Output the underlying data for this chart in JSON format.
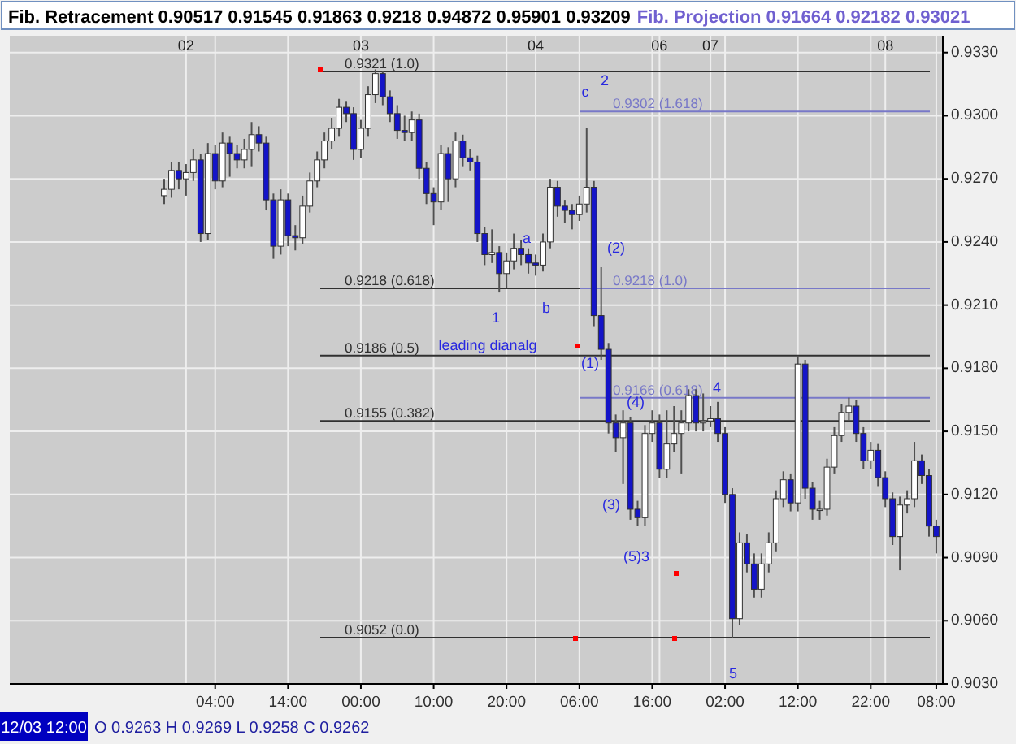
{
  "chart_data": {
    "type": "candlestick",
    "title": "Fib. Retracement 0.90517 0.91545 0.91863 0.9218 0.94872 0.95901 0.93209",
    "subtitle": "Fib. Projection 0.91664 0.92182 0.93021",
    "colors": [
      "#ffffff",
      "#ffffff",
      "#1414c8",
      "#ffffff",
      "#ffffff",
      "#1414c8",
      "#ffffff",
      "#1414c8",
      "#ffffff",
      "#1414c8",
      "#1414c8",
      "#ffffff",
      "#ffffff",
      "#1414c8",
      "#1414c8",
      "#1414c8",
      "#ffffff",
      "#1414c8",
      "#1414c8",
      "#ffffff",
      "#ffffff",
      "#ffffff",
      "#ffffff",
      "#ffffff",
      "#ffffff",
      "#1414c8",
      "#1414c8",
      "#ffffff",
      "#ffffff",
      "#ffffff",
      "#1414c8",
      "#1414c8",
      "#1414c8",
      "#1414c8",
      "#ffffff",
      "#1414c8",
      "#1414c8",
      "#1414c8",
      "#ffffff",
      "#1414c8",
      "#ffffff",
      "#1414c8",
      "#1414c8",
      "#1414c8",
      "#1414c8",
      "#ffffff",
      "#1414c8",
      "#ffffff",
      "#ffffff",
      "#1414c8",
      "#1414c8",
      "#1414c8",
      "#ffffff",
      "#ffffff",
      "#1414c8",
      "#1414c8",
      "#1414c8",
      "#ffffff",
      "#ffffff",
      "#1414c8",
      "#1414c8",
      "#1414c8",
      "#1414c8",
      "#ffffff",
      "#1414c8",
      "#1414c8",
      "#ffffff",
      "#ffffff",
      "#1414c8",
      "#ffffff",
      "#ffffff",
      "#ffffff",
      "#ffffff",
      "#1414c8",
      "#ffffff",
      "#ffffff",
      "#1414c8",
      "#1414c8",
      "#1414c8",
      "#ffffff",
      "#1414c8",
      "#1414c8",
      "#ffffff",
      "#ffffff",
      "#ffffff",
      "#ffffff",
      "#1414c8",
      "#ffffff",
      "#1414c8",
      "#1414c8",
      "#ffffff",
      "#ffffff",
      "#ffffff",
      "#ffffff",
      "#ffffff",
      "#1414c8",
      "#1414c8",
      "#ffffff",
      "#1414c8",
      "#1414c8",
      "#1414c8",
      "#ffffff",
      "#ffffff",
      "#ffffff",
      "#1414c8",
      "#1414c8",
      "#1414c8"
    ],
    "categories": [
      null,
      null,
      null,
      null,
      null,
      null,
      null,
      "04:00",
      null,
      null,
      null,
      null,
      null,
      null,
      null,
      null,
      null,
      "14:00",
      null,
      null,
      null,
      null,
      null,
      null,
      null,
      null,
      null,
      "00:00",
      null,
      null,
      null,
      null,
      null,
      null,
      null,
      null,
      null,
      "10:00",
      null,
      null,
      null,
      null,
      null,
      null,
      null,
      null,
      null,
      "20:00",
      null,
      null,
      null,
      null,
      null,
      null,
      null,
      null,
      null,
      "06:00",
      null,
      null,
      null,
      null,
      null,
      null,
      null,
      null,
      null,
      "16:00",
      null,
      null,
      null,
      null,
      null,
      null,
      null,
      null,
      null,
      "02:00",
      null,
      null,
      null,
      null,
      null,
      null,
      null,
      null,
      null,
      "12:00",
      null,
      null,
      null,
      null,
      null,
      null,
      null,
      null,
      null,
      "22:00",
      null,
      null,
      null,
      null,
      null,
      null,
      null,
      null,
      "08:00"
    ],
    "ohlc": [
      [
        0.9262,
        0.927,
        0.9258,
        0.9265
      ],
      [
        0.9265,
        0.9278,
        0.9261,
        0.9274
      ],
      [
        0.9274,
        0.9278,
        0.9265,
        0.927
      ],
      [
        0.927,
        0.9277,
        0.9262,
        0.9273
      ],
      [
        0.9273,
        0.9284,
        0.9269,
        0.9279
      ],
      [
        0.9279,
        0.9282,
        0.924,
        0.9244
      ],
      [
        0.9244,
        0.9287,
        0.9241,
        0.9282
      ],
      [
        0.9282,
        0.9286,
        0.9265,
        0.9269
      ],
      [
        0.9269,
        0.9292,
        0.9266,
        0.9287
      ],
      [
        0.9287,
        0.929,
        0.9271,
        0.9282
      ],
      [
        0.9282,
        0.9286,
        0.9275,
        0.9279
      ],
      [
        0.9279,
        0.9289,
        0.9275,
        0.9284
      ],
      [
        0.9284,
        0.9297,
        0.9276,
        0.9291
      ],
      [
        0.9291,
        0.9295,
        0.9283,
        0.9287
      ],
      [
        0.9287,
        0.929,
        0.9255,
        0.926
      ],
      [
        0.926,
        0.9263,
        0.9232,
        0.9238
      ],
      [
        0.9238,
        0.9265,
        0.9234,
        0.926
      ],
      [
        0.926,
        0.9263,
        0.9238,
        0.9243
      ],
      [
        0.9243,
        0.9248,
        0.9236,
        0.9242
      ],
      [
        0.9242,
        0.9262,
        0.9239,
        0.9257
      ],
      [
        0.9257,
        0.9273,
        0.9254,
        0.9269
      ],
      [
        0.9269,
        0.9283,
        0.9266,
        0.9279
      ],
      [
        0.9279,
        0.9292,
        0.9275,
        0.9288
      ],
      [
        0.9288,
        0.9299,
        0.9284,
        0.9294
      ],
      [
        0.9294,
        0.9308,
        0.929,
        0.9304
      ],
      [
        0.9304,
        0.9307,
        0.9297,
        0.9301
      ],
      [
        0.9301,
        0.9304,
        0.9279,
        0.9284
      ],
      [
        0.9284,
        0.9298,
        0.928,
        0.9294
      ],
      [
        0.9294,
        0.9314,
        0.929,
        0.931
      ],
      [
        0.931,
        0.9322,
        0.9306,
        0.932
      ],
      [
        0.932,
        0.9321,
        0.9305,
        0.9309
      ],
      [
        0.9309,
        0.9312,
        0.9297,
        0.9301
      ],
      [
        0.9301,
        0.9305,
        0.9289,
        0.9293
      ],
      [
        0.9293,
        0.93,
        0.9288,
        0.9292
      ],
      [
        0.9292,
        0.9302,
        0.9288,
        0.9298
      ],
      [
        0.9298,
        0.9301,
        0.927,
        0.9275
      ],
      [
        0.9275,
        0.9278,
        0.9258,
        0.9263
      ],
      [
        0.9263,
        0.9266,
        0.9248,
        0.9259
      ],
      [
        0.9259,
        0.9286,
        0.9255,
        0.9282
      ],
      [
        0.9282,
        0.9285,
        0.9259,
        0.927
      ],
      [
        0.927,
        0.9292,
        0.9266,
        0.9288
      ],
      [
        0.9288,
        0.9291,
        0.9276,
        0.928
      ],
      [
        0.928,
        0.9284,
        0.9274,
        0.9278
      ],
      [
        0.9278,
        0.9281,
        0.924,
        0.9244
      ],
      [
        0.9244,
        0.9247,
        0.9229,
        0.9234
      ],
      [
        0.9234,
        0.9246,
        0.923,
        0.9235
      ],
      [
        0.9235,
        0.9238,
        0.9216,
        0.9225
      ],
      [
        0.9225,
        0.9235,
        0.9218,
        0.9231
      ],
      [
        0.9231,
        0.9244,
        0.9227,
        0.9237
      ],
      [
        0.9237,
        0.9241,
        0.9229,
        0.9234
      ],
      [
        0.9234,
        0.9237,
        0.9225,
        0.923
      ],
      [
        0.923,
        0.9234,
        0.9224,
        0.9229
      ],
      [
        0.9229,
        0.9244,
        0.9226,
        0.924
      ],
      [
        0.924,
        0.927,
        0.9237,
        0.9266
      ],
      [
        0.9266,
        0.9269,
        0.9252,
        0.9257
      ],
      [
        0.9257,
        0.926,
        0.9249,
        0.9255
      ],
      [
        0.9255,
        0.9258,
        0.9246,
        0.9253
      ],
      [
        0.9253,
        0.9262,
        0.925,
        0.9258
      ],
      [
        0.9258,
        0.9294,
        0.9254,
        0.9266
      ],
      [
        0.9266,
        0.9269,
        0.92,
        0.9205
      ],
      [
        0.9205,
        0.9228,
        0.9184,
        0.9189
      ],
      [
        0.9189,
        0.9192,
        0.9149,
        0.9154
      ],
      [
        0.9154,
        0.9158,
        0.914,
        0.9147
      ],
      [
        0.9147,
        0.916,
        0.9125,
        0.9154
      ],
      [
        0.9154,
        0.9157,
        0.9108,
        0.9113
      ],
      [
        0.9113,
        0.9117,
        0.9105,
        0.9109
      ],
      [
        0.9109,
        0.9153,
        0.9105,
        0.9149
      ],
      [
        0.9149,
        0.916,
        0.9145,
        0.9154
      ],
      [
        0.9154,
        0.9158,
        0.9128,
        0.9132
      ],
      [
        0.9132,
        0.916,
        0.9128,
        0.9144
      ],
      [
        0.9144,
        0.9162,
        0.914,
        0.9149
      ],
      [
        0.9149,
        0.916,
        0.913,
        0.9154
      ],
      [
        0.9154,
        0.917,
        0.915,
        0.9167
      ],
      [
        0.9167,
        0.917,
        0.915,
        0.9154
      ],
      [
        0.9154,
        0.9168,
        0.915,
        0.9155
      ],
      [
        0.9155,
        0.9162,
        0.9152,
        0.9156
      ],
      [
        0.9156,
        0.9164,
        0.9145,
        0.9149
      ],
      [
        0.9149,
        0.9152,
        0.9116,
        0.912
      ],
      [
        0.912,
        0.9123,
        0.9052,
        0.9061
      ],
      [
        0.9061,
        0.9102,
        0.9058,
        0.9097
      ],
      [
        0.9097,
        0.9101,
        0.9083,
        0.9087
      ],
      [
        0.9087,
        0.9092,
        0.9071,
        0.9075
      ],
      [
        0.9075,
        0.9092,
        0.9071,
        0.9087
      ],
      [
        0.9087,
        0.9102,
        0.9083,
        0.9097
      ],
      [
        0.9097,
        0.9122,
        0.9093,
        0.9118
      ],
      [
        0.9118,
        0.9131,
        0.9114,
        0.9127
      ],
      [
        0.9127,
        0.913,
        0.9112,
        0.9116
      ],
      [
        0.9116,
        0.9186,
        0.9112,
        0.9182
      ],
      [
        0.9182,
        0.9184,
        0.9118,
        0.9123
      ],
      [
        0.9123,
        0.9126,
        0.9108,
        0.9113
      ],
      [
        0.9113,
        0.9117,
        0.9108,
        0.9113
      ],
      [
        0.9113,
        0.9137,
        0.911,
        0.9133
      ],
      [
        0.9133,
        0.9152,
        0.913,
        0.9148
      ],
      [
        0.9148,
        0.9163,
        0.9145,
        0.9159
      ],
      [
        0.9159,
        0.9166,
        0.9155,
        0.9162
      ],
      [
        0.9162,
        0.9165,
        0.9145,
        0.9149
      ],
      [
        0.9149,
        0.9152,
        0.9132,
        0.9136
      ],
      [
        0.9136,
        0.9145,
        0.9132,
        0.9141
      ],
      [
        0.9141,
        0.9144,
        0.9124,
        0.9128
      ],
      [
        0.9128,
        0.9131,
        0.9114,
        0.9118
      ],
      [
        0.9118,
        0.9121,
        0.9096,
        0.91
      ],
      [
        0.91,
        0.9119,
        0.9084,
        0.9115
      ],
      [
        0.9115,
        0.9122,
        0.9111,
        0.9118
      ],
      [
        0.9118,
        0.9145,
        0.9114,
        0.9136
      ],
      [
        0.9136,
        0.9139,
        0.9125,
        0.9129
      ],
      [
        0.9129,
        0.9132,
        0.91,
        0.9105
      ],
      [
        0.9105,
        0.9108,
        0.9092,
        0.91
      ]
    ],
    "ylim": [
      0.903,
      0.9338
    ],
    "yticks": [
      {
        "value": 0.903,
        "label": "0.9030"
      },
      {
        "value": 0.906,
        "label": "0.9060"
      },
      {
        "value": 0.909,
        "label": "0.9090"
      },
      {
        "value": 0.912,
        "label": "0.9120"
      },
      {
        "value": 0.915,
        "label": "0.9150"
      },
      {
        "value": 0.918,
        "label": "0.9180"
      },
      {
        "value": 0.921,
        "label": "0.9210"
      },
      {
        "value": 0.924,
        "label": "0.9240"
      },
      {
        "value": 0.927,
        "label": "0.9270"
      },
      {
        "value": 0.93,
        "label": "0.9300"
      },
      {
        "value": 0.933,
        "label": "0.9330"
      }
    ],
    "grid": true,
    "ref_lines": [
      {
        "axis": "y",
        "value": 0.9321,
        "label": "0.9321 (1.0)",
        "color": "#303030"
      },
      {
        "axis": "y",
        "value": 0.9218,
        "label": "0.9218 (0.618)",
        "color": "#303030"
      },
      {
        "axis": "y",
        "value": 0.9186,
        "label": "0.9186 (0.5)",
        "color": "#303030"
      },
      {
        "axis": "y",
        "value": 0.9155,
        "label": "0.9155 (0.382)",
        "color": "#303030"
      },
      {
        "axis": "y",
        "value": 0.9052,
        "label": "0.9052 (0.0)",
        "color": "#303030"
      },
      {
        "axis": "y",
        "value": 0.9302,
        "label": "0.9302 (1.618)",
        "color": "#7878c8"
      },
      {
        "axis": "y",
        "value": 0.9218,
        "label": "0.9218 (1.0)",
        "color": "#7878c8"
      },
      {
        "axis": "y",
        "value": 0.9166,
        "label": "0.9166 (0.618)",
        "color": "#7878c8"
      }
    ],
    "annotations": [
      "12/03 12:00",
      "O 0.9263 H 0.9269 L 0.9258 C 0.9262",
      "a",
      "1",
      "b",
      "leading dianalg",
      "c",
      "2",
      "(2)",
      "(1)",
      "(4)",
      "4",
      "(3)",
      "(5)",
      "3",
      "5",
      "02",
      "03",
      "04",
      "06",
      "07",
      "08"
    ]
  }
}
